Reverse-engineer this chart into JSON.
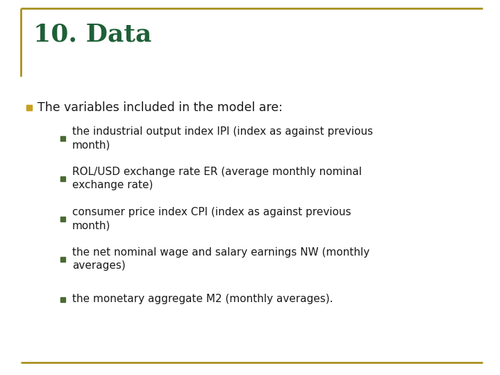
{
  "title": "10. Data",
  "title_color": "#1F6038",
  "title_fontsize": 26,
  "background_color": "#FFFFFF",
  "border_color": "#A89020",
  "bullet1_text": "The variables included in the model are:",
  "bullet1_color": "#1A1A1A",
  "bullet1_marker_color": "#C8A020",
  "bullet1_fontsize": 12.5,
  "subbullets": [
    "the industrial output index IPI (index as against previous\nmonth)",
    "ROL/USD exchange rate ER (average monthly nominal\nexchange rate)",
    "consumer price index CPI (index as against previous\nmonth)",
    "the net nominal wage and salary earnings NW (monthly\naverages)",
    "the monetary aggregate M2 (monthly averages)."
  ],
  "subbullet_color": "#1A1A1A",
  "subbullet_marker_color": "#4A6A30",
  "subbullet_fontsize": 11.0
}
